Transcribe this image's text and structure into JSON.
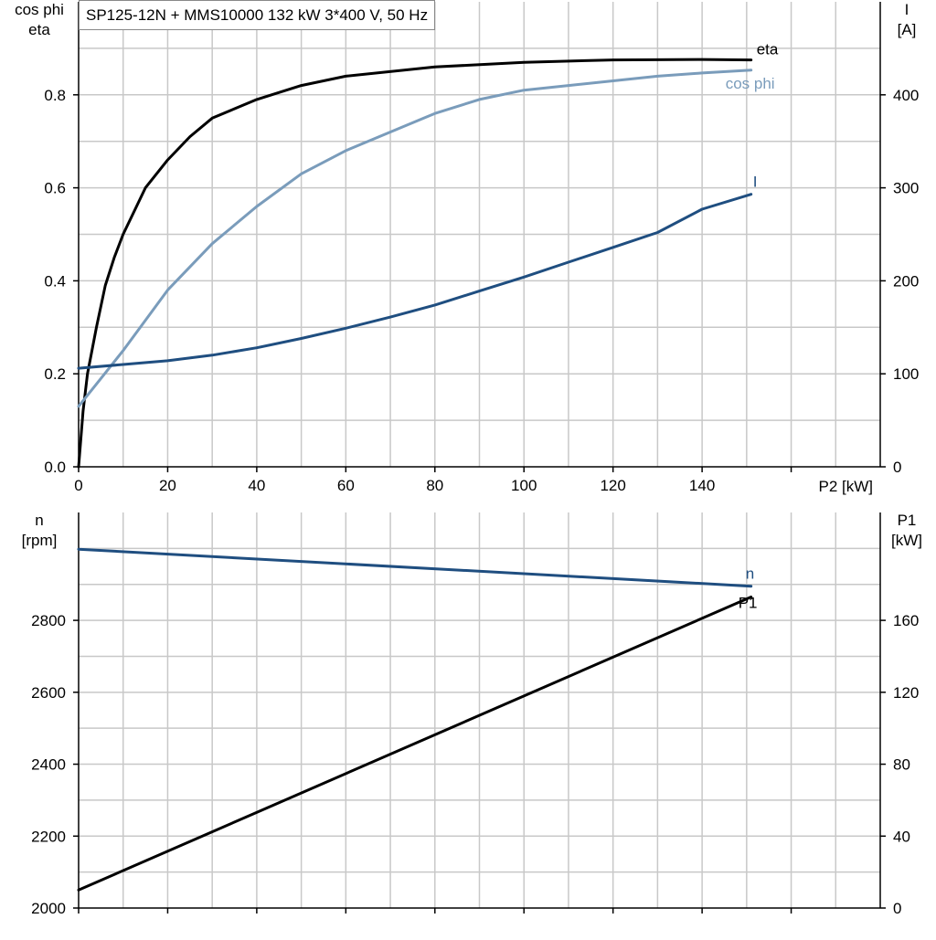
{
  "title": "SP125-12N + MMS10000   132 kW   3*400 V, 50 Hz",
  "colors": {
    "grid": "#c8c8c8",
    "axis": "#000000",
    "eta": "#000000",
    "cos_phi": "#7a9cbb",
    "current": "#1f4e80",
    "speed": "#1f4e80",
    "p1": "#000000"
  },
  "chart_data": [
    {
      "type": "line",
      "name": "top",
      "left_axis_label": [
        "cos phi",
        "eta"
      ],
      "right_axis_label": [
        "I",
        "[A]"
      ],
      "xlabel": "P2 [kW]",
      "xlim": [
        0,
        180
      ],
      "xticks": [
        0,
        20,
        40,
        60,
        80,
        100,
        120,
        140
      ],
      "ylim_left": [
        0,
        1.0
      ],
      "yticks_left": [
        0.0,
        0.2,
        0.4,
        0.6,
        0.8
      ],
      "ylim_right": [
        0,
        500
      ],
      "yticks_right": [
        0,
        100,
        200,
        300,
        400
      ],
      "grid": true,
      "series": [
        {
          "name": "eta",
          "axis": "left",
          "color_key": "eta",
          "x": [
            0,
            1,
            2,
            3,
            4,
            6,
            8,
            10,
            12,
            15,
            20,
            25,
            30,
            40,
            50,
            60,
            80,
            100,
            120,
            140,
            151
          ],
          "y": [
            0.0,
            0.12,
            0.2,
            0.25,
            0.3,
            0.39,
            0.45,
            0.5,
            0.54,
            0.6,
            0.66,
            0.71,
            0.75,
            0.79,
            0.82,
            0.84,
            0.86,
            0.87,
            0.875,
            0.876,
            0.875
          ]
        },
        {
          "name": "cos phi",
          "axis": "left",
          "color_key": "cos_phi",
          "x": [
            0,
            5,
            10,
            20,
            30,
            40,
            50,
            60,
            70,
            80,
            90,
            100,
            110,
            120,
            130,
            140,
            151
          ],
          "y": [
            0.13,
            0.19,
            0.25,
            0.38,
            0.48,
            0.56,
            0.63,
            0.68,
            0.72,
            0.76,
            0.79,
            0.81,
            0.82,
            0.83,
            0.84,
            0.847,
            0.853
          ]
        },
        {
          "name": "I",
          "axis": "right",
          "color_key": "current",
          "x": [
            0,
            10,
            20,
            30,
            40,
            50,
            60,
            70,
            80,
            90,
            100,
            110,
            120,
            130,
            140,
            151
          ],
          "y": [
            106,
            110,
            114,
            120,
            128,
            138,
            149,
            161,
            174,
            189,
            204,
            220,
            236,
            252,
            277,
            293
          ]
        }
      ]
    },
    {
      "type": "line",
      "name": "bottom",
      "left_axis_label": [
        "n",
        "[rpm]"
      ],
      "right_axis_label": [
        "P1",
        "[kW]"
      ],
      "xlim": [
        0,
        180
      ],
      "xticks": [
        0,
        20,
        40,
        60,
        80,
        100,
        120,
        140
      ],
      "ylim_left": [
        2000,
        3100
      ],
      "yticks_left": [
        2000,
        2200,
        2400,
        2600,
        2800
      ],
      "ylim_right": [
        0,
        220
      ],
      "yticks_right": [
        0,
        40,
        80,
        120,
        160
      ],
      "grid": true,
      "series": [
        {
          "name": "n",
          "axis": "left",
          "color_key": "speed",
          "x": [
            0,
            151
          ],
          "y": [
            2998,
            2895
          ]
        },
        {
          "name": "P1",
          "axis": "right",
          "color_key": "p1",
          "x": [
            0,
            151
          ],
          "y": [
            10,
            173
          ]
        }
      ]
    }
  ]
}
